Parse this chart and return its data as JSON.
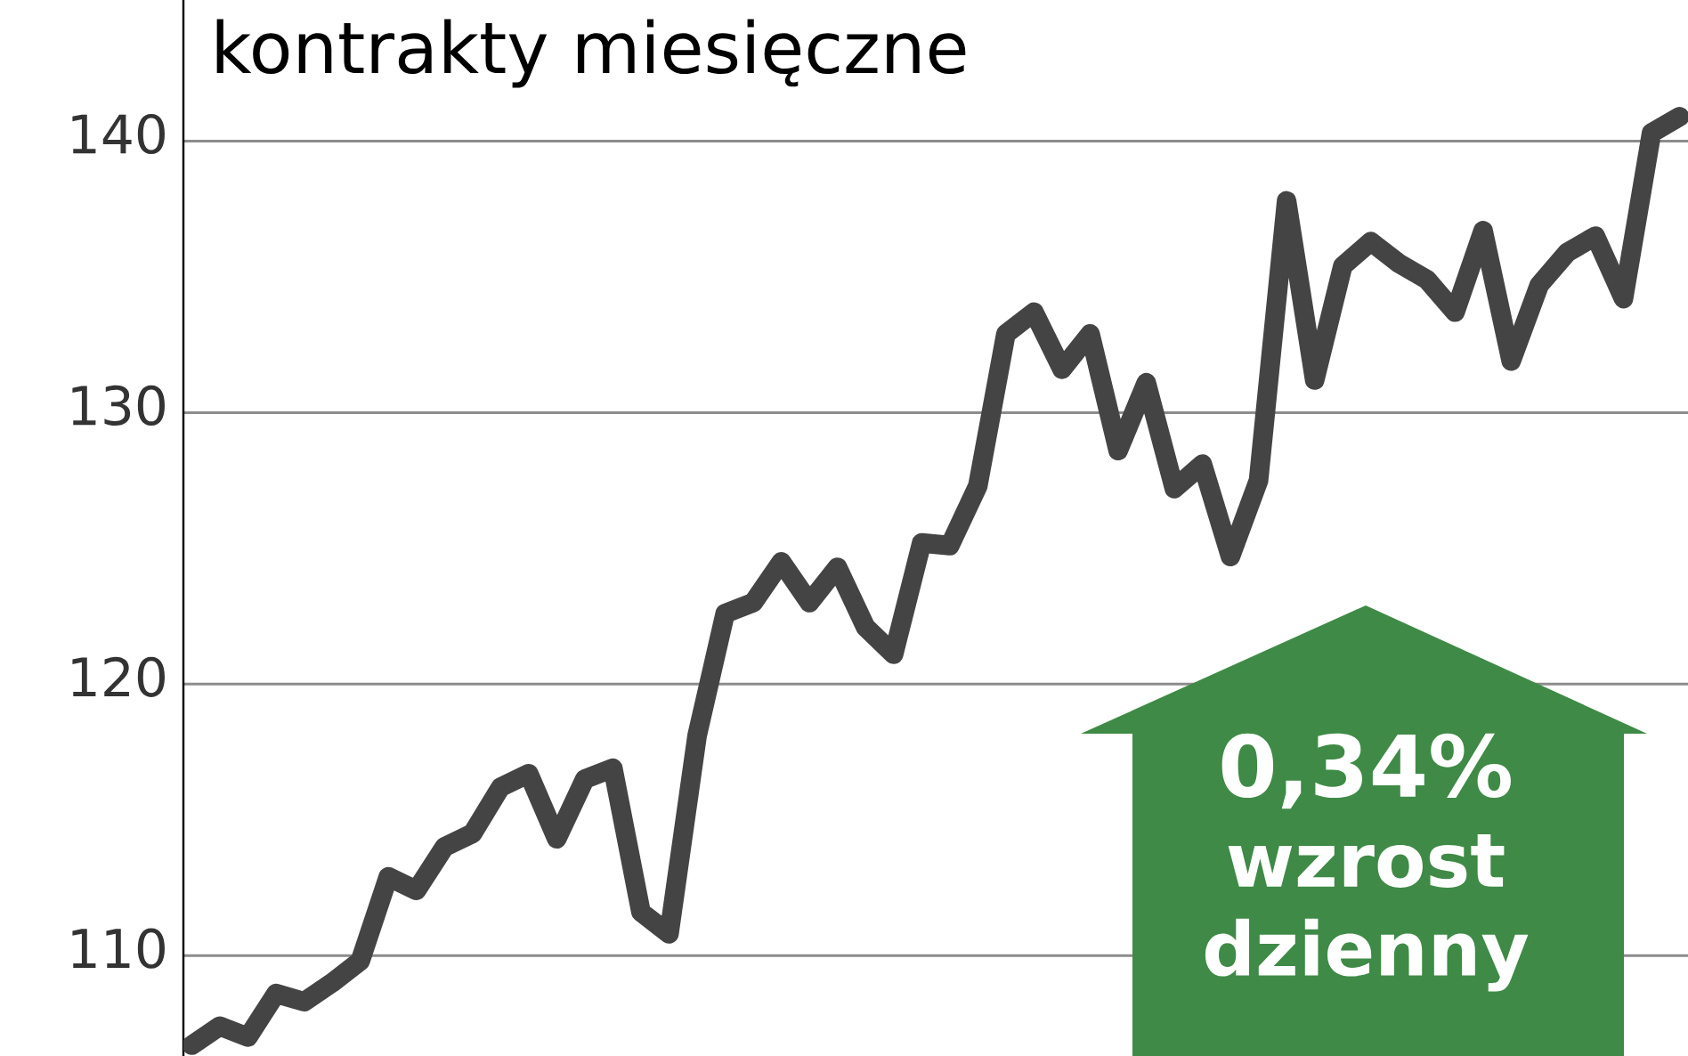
{
  "chart_data": {
    "type": "line",
    "title": "kontrakty miesięczne",
    "categories": [
      null,
      null,
      null,
      null,
      null,
      null,
      null,
      null,
      null,
      null,
      null,
      null,
      null,
      null,
      null,
      null,
      null,
      null,
      null,
      null,
      null,
      null,
      null,
      null,
      null,
      null,
      null,
      null,
      null,
      null,
      null,
      null,
      null,
      null,
      null,
      null,
      null,
      null,
      null,
      null,
      null,
      null,
      null,
      null,
      null,
      null,
      null,
      null,
      null,
      null,
      null,
      null,
      null,
      null
    ],
    "series": [
      {
        "color": "#444444",
        "values": [
          106.7,
          107.4,
          107.0,
          108.6,
          108.3,
          109.0,
          109.8,
          112.9,
          112.4,
          114.0,
          114.5,
          116.2,
          116.7,
          114.3,
          116.5,
          116.9,
          111.6,
          110.8,
          118.1,
          122.6,
          123.0,
          124.5,
          123.0,
          124.3,
          122.1,
          121.1,
          125.2,
          125.1,
          127.3,
          132.9,
          133.7,
          131.6,
          132.9,
          128.6,
          131.1,
          127.2,
          128.1,
          124.7,
          127.5,
          137.8,
          131.2,
          135.4,
          136.3,
          135.5,
          134.9,
          133.7,
          136.7,
          131.9,
          134.7,
          135.9,
          136.5,
          134.2,
          140.3,
          140.9
        ]
      }
    ],
    "ylim": [
      106.3,
      145.2
    ],
    "yticks": [
      110,
      120,
      130,
      140
    ],
    "grid": "y",
    "tick_labels": "y",
    "annotations": [
      "0,34%",
      "wzrost dzienny"
    ]
  }
}
